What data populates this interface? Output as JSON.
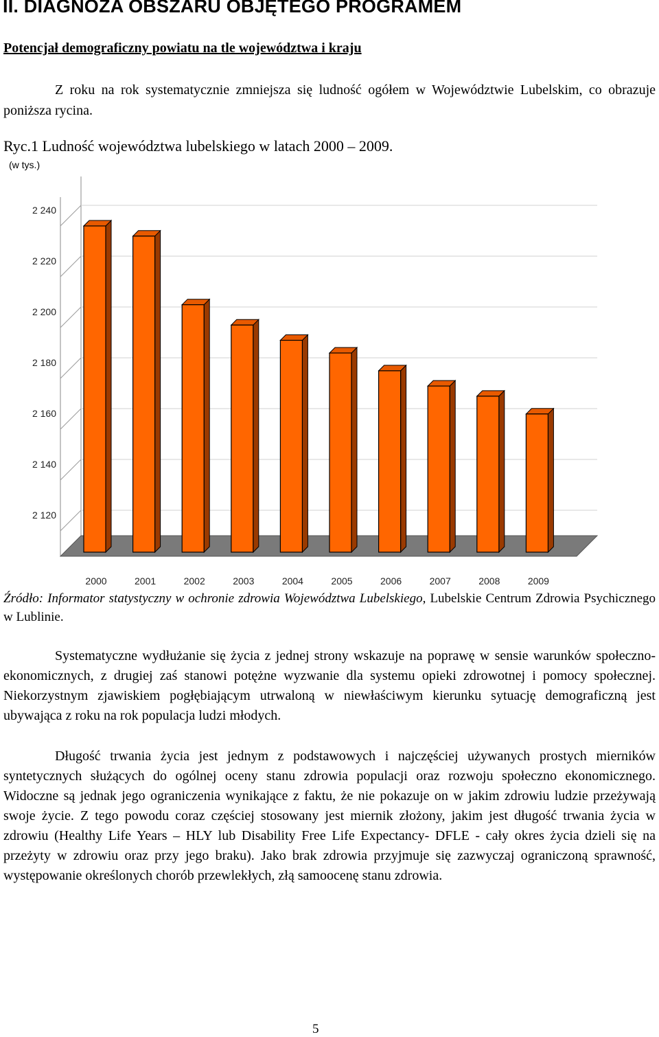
{
  "section_heading": "II. DIAGNOZA OBSZARU OBJĘTEGO PROGRAMEM",
  "subheading": "Potencjał demograficzny powiatu na tle województwa i kraju",
  "intro_text": "Z roku na rok systematycznie zmniejsza się ludność ogółem w Województwie Lubelskim, co obrazuje poniższa rycina.",
  "figure_caption": "Ryc.1 Ludność województwa lubelskiego w latach 2000 – 2009.",
  "unit_label": "(w tys.)",
  "chart_data": {
    "type": "bar",
    "categories": [
      "2000",
      "2001",
      "2002",
      "2003",
      "2004",
      "2005",
      "2006",
      "2007",
      "2008",
      "2009"
    ],
    "values": [
      2240,
      2236,
      2209,
      2201,
      2195,
      2190,
      2183,
      2177,
      2173,
      2166
    ],
    "y_ticks": [
      2120,
      2140,
      2160,
      2180,
      2200,
      2220,
      2240
    ],
    "y_tick_labels": [
      "2 120",
      "2 140",
      "2 160",
      "2 180",
      "2 200",
      "2 220",
      "2 240"
    ],
    "ylim": [
      2110,
      2250
    ],
    "grid": true,
    "style": "3d-bar",
    "bar_color": "#FF6600",
    "bar_side_color": "#9A3A00",
    "bar_top_color": "#E85A00"
  },
  "source_label": "Źródło: Informator statystyczny w ochronie zdrowia Województwa Lubelskiego,",
  "source_tail": "Lubelskie Centrum Zdrowia Psychicznego w Lublinie.",
  "paragraph1": "Systematyczne wydłużanie się życia z jednej strony wskazuje na poprawę w sensie warunków społeczno-ekonomicznych, z drugiej zaś stanowi potężne wyzwanie dla systemu opieki zdrowotnej i pomocy społecznej. Niekorzystnym zjawiskiem pogłębiającym utrwaloną w niewłaściwym kierunku sytuację demograficzną jest ubywająca z roku na rok populacja ludzi młodych.",
  "paragraph2": "Długość trwania życia jest jednym z podstawowych i najczęściej używanych prostych mierników syntetycznych służących do ogólnej oceny stanu zdrowia populacji oraz rozwoju społeczno ekonomicznego. Widoczne są jednak jego ograniczenia wynikające z faktu, że nie pokazuje on w jakim zdrowiu ludzie przeżywają swoje życie. Z tego powodu coraz częściej stosowany jest miernik złożony, jakim jest długość trwania życia w zdrowiu (Healthy Life Years – HLY lub Disability Free Life Expectancy- DFLE - cały okres życia dzieli się na przeżyty w zdrowiu oraz przy jego braku). Jako brak zdrowia przyjmuje się zazwyczaj ograniczoną sprawność, występowanie określonych chorób przewlekłych, złą samoocenę stanu zdrowia.",
  "page_number": "5"
}
